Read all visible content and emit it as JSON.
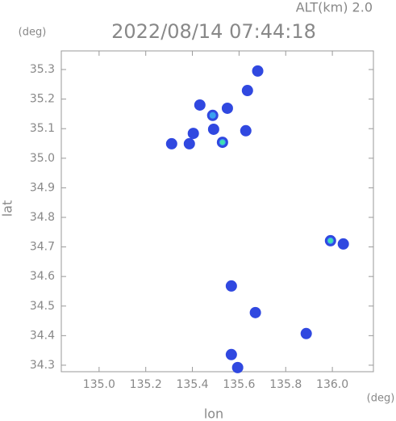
{
  "chart_data": {
    "type": "scatter",
    "header": "ALT(km) 2.0",
    "title": "2022/08/14 07:44:18",
    "y_unit": "(deg)",
    "x_unit": "(deg)",
    "y_label": "lat",
    "x_label": "lon",
    "xlim": [
      134.838,
      136.176
    ],
    "ylim": [
      34.278,
      35.363
    ],
    "xticks": [
      {
        "value": 135.0,
        "label": "135.0"
      },
      135.2,
      135.4,
      135.6,
      135.8,
      {
        "value": 136.0,
        "label": "136.0"
      }
    ],
    "yticks": [
      35.3,
      35.2,
      35.1,
      {
        "value": 35.0,
        "label": "35.0"
      },
      34.9,
      34.8,
      34.7,
      34.6,
      34.5,
      34.4,
      34.3
    ],
    "series": [
      {
        "color": "#3048e0",
        "x": [
          135.68,
          135.636,
          135.432,
          135.487,
          135.55,
          135.491,
          135.529,
          135.404,
          135.387,
          135.629,
          135.311,
          135.992,
          136.047,
          135.567,
          135.67,
          135.888,
          135.567,
          135.594
        ],
        "y": [
          35.295,
          35.229,
          35.18,
          35.145,
          35.169,
          35.098,
          35.054,
          35.084,
          35.049,
          35.093,
          35.049,
          34.721,
          34.71,
          34.568,
          34.478,
          34.407,
          34.336,
          34.292
        ]
      },
      {
        "color": "#38a0f0",
        "x": [
          135.487,
          135.529,
          135.992
        ],
        "y": [
          35.145,
          35.054,
          34.721
        ]
      },
      {
        "color": "#40e0b0",
        "x": [
          135.529,
          135.992
        ],
        "y": [
          35.054,
          34.721
        ]
      }
    ]
  }
}
